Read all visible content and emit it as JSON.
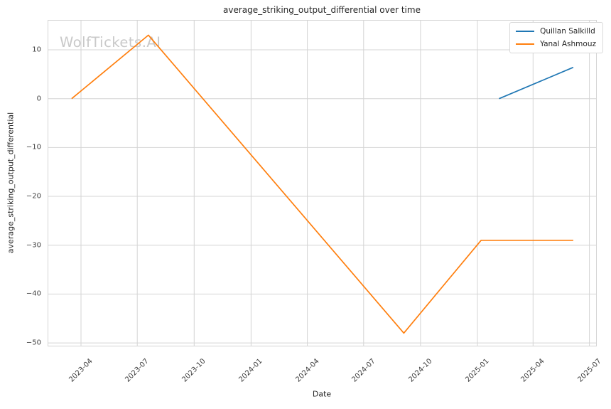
{
  "figure": {
    "title": "average_striking_output_differential over time",
    "watermark": "WolfTickets.AI",
    "xlabel": "Date",
    "ylabel": "average_striking_output_differential"
  },
  "colors": {
    "background": "#ffffff",
    "grid": "#d4d4d4",
    "plot_border": "#d4d4d4",
    "title_text": "#262626",
    "tick_text": "#3d3d3d",
    "watermark_text": "#c9c9c9",
    "legend_border": "#d9d9d9",
    "series_blue": "#1f77b4",
    "series_orange": "#ff7f0e"
  },
  "chart_data": {
    "type": "line",
    "title": "average_striking_output_differential over time",
    "xlabel": "Date",
    "ylabel": "average_striking_output_differential",
    "grid": true,
    "legend_position": "upper right",
    "x_domain": [
      "2023-02-06",
      "2025-07-13"
    ],
    "y_domain": [
      -50.72,
      16.12
    ],
    "x_ticks": [
      {
        "date": "2023-04-01",
        "label": "2023-04"
      },
      {
        "date": "2023-07-01",
        "label": "2023-07"
      },
      {
        "date": "2023-10-01",
        "label": "2023-10"
      },
      {
        "date": "2024-01-01",
        "label": "2024-01"
      },
      {
        "date": "2024-04-01",
        "label": "2024-04"
      },
      {
        "date": "2024-07-01",
        "label": "2024-07"
      },
      {
        "date": "2024-10-01",
        "label": "2024-10"
      },
      {
        "date": "2025-01-01",
        "label": "2025-01"
      },
      {
        "date": "2025-04-01",
        "label": "2025-04"
      },
      {
        "date": "2025-07-01",
        "label": "2025-07"
      }
    ],
    "y_ticks": [
      {
        "value": 10,
        "label": "10"
      },
      {
        "value": 0,
        "label": "0"
      },
      {
        "value": -10,
        "label": "−10"
      },
      {
        "value": -20,
        "label": "−20"
      },
      {
        "value": -30,
        "label": "−30"
      },
      {
        "value": -40,
        "label": "−40"
      },
      {
        "value": -50,
        "label": "−50"
      }
    ],
    "series": [
      {
        "name": "Quillan Salkilld",
        "color": "#1f77b4",
        "points": [
          {
            "date": "2025-02-05",
            "value": 0
          },
          {
            "date": "2025-06-05",
            "value": 6.4
          }
        ]
      },
      {
        "name": "Yanal Ashmouz",
        "color": "#ff7f0e",
        "points": [
          {
            "date": "2023-03-17",
            "value": 0
          },
          {
            "date": "2023-07-19",
            "value": 13
          },
          {
            "date": "2024-09-04",
            "value": -48
          },
          {
            "date": "2025-01-07",
            "value": -29
          },
          {
            "date": "2025-06-05",
            "value": -29
          }
        ]
      }
    ]
  }
}
